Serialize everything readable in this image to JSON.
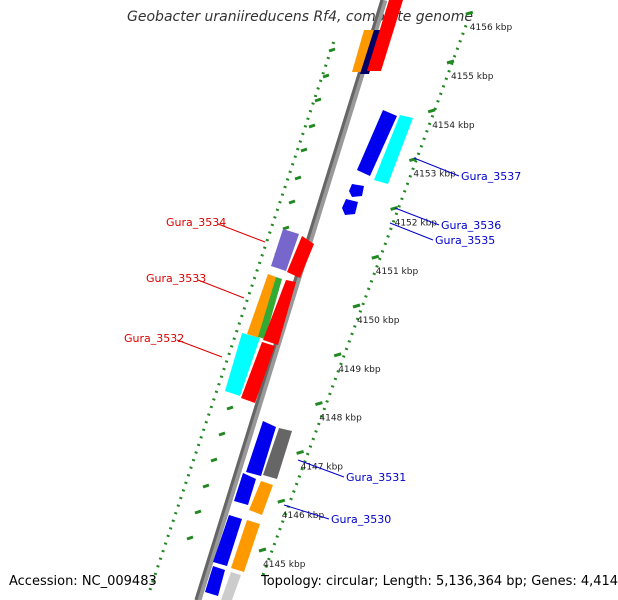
{
  "title": "Geobacter uraniireducens Rf4, complete genome",
  "footer": {
    "accession": "Accession: NC_009483",
    "topology": "Topology: circular; Length: 5,136,364 bp; Genes: 4,414"
  },
  "axis": {
    "unit": "kbp",
    "ticks": [
      "4145 kbp",
      "4146 kbp",
      "4147 kbp",
      "4148 kbp",
      "4149 kbp",
      "4150 kbp",
      "4151 kbp",
      "4152 kbp",
      "4153 kbp",
      "4154 kbp",
      "4155 kbp",
      "4156 kbp"
    ]
  },
  "colors": {
    "blue": "#0000ee",
    "red": "#ff0000",
    "cyan": "#00ffff",
    "orange": "#ff9900",
    "green": "#33aa33",
    "purple": "#7766cc",
    "gray": "#666666",
    "lightgray": "#cccccc",
    "navy": "#000066",
    "dots": "#228822",
    "gene_label_forward": "#0000cc",
    "gene_label_reverse": "#dd0000"
  },
  "gene_labels": {
    "left": [
      "Gura_3534",
      "Gura_3533",
      "Gura_3532"
    ],
    "right": [
      "Gura_3537",
      "Gura_3536",
      "Gura_3535",
      "Gura_3531",
      "Gura_3530"
    ]
  }
}
